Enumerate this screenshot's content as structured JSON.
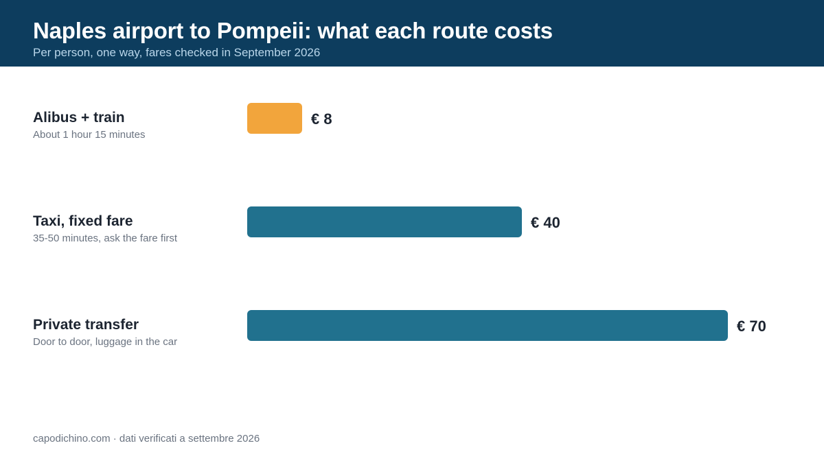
{
  "header": {
    "title": "Naples airport to Pompeii: what each route costs",
    "subtitle": "Per person, one way, fares checked in September 2026"
  },
  "footer": {
    "source": "capodichino.com · dati verificati a settembre 2026"
  },
  "colors": {
    "header_bg": "#0d3d5e",
    "highlight_bar": "#f2a53c",
    "default_bar": "#21718e"
  },
  "chart_data": {
    "type": "bar",
    "orientation": "horizontal",
    "title": "Naples airport to Pompeii: what each route costs",
    "subtitle": "Per person, one way, fares checked in September 2026",
    "categories": [
      "Alibus + train",
      "Taxi, fixed fare",
      "Private transfer"
    ],
    "notes": [
      "About 1 hour 15 minutes",
      "35-50 minutes, ask the fare first",
      "Door to door, luggage in the car"
    ],
    "values": [
      8,
      40,
      70
    ],
    "value_labels": [
      "€ 8",
      "€ 40",
      "€ 70"
    ],
    "highlight_index": 0,
    "unit": "€",
    "xlim": [
      0,
      70
    ],
    "grid": false,
    "legend": "none"
  }
}
